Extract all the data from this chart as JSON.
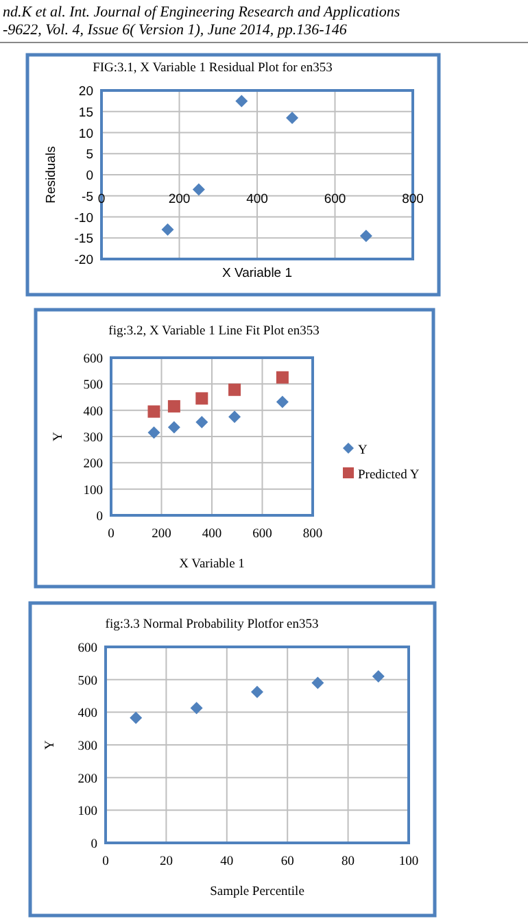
{
  "chart_data": [
    {
      "type": "scatter",
      "title": "FIG:3.1, X Variable 1  Residual Plot for en353",
      "xlabel": "X Variable 1",
      "ylabel": "Residuals",
      "annotations": [
        "nd.K  et al. Int. Journal of Engineering Research and Applications",
        "-9622, Vol. 4, Issue 6( Version 1), June 2014, pp.136-146"
      ],
      "series": [
        {
          "color": "#4f81bd",
          "x": [
            170,
            250,
            360,
            490,
            680
          ],
          "values": [
            -13,
            -3.5,
            17.5,
            13.5,
            -14.5
          ],
          "marker": "diamond"
        }
      ],
      "xlim": [
        0,
        800
      ],
      "xticks": [
        0,
        200,
        400,
        600,
        800
      ],
      "ylim": [
        -20,
        20
      ],
      "yticks": [
        -20,
        -15,
        -10,
        -5,
        0,
        5,
        10,
        15,
        20
      ],
      "grid": true,
      "legend": false
    },
    {
      "type": "scatter",
      "title": "fig:3.2, X Variable 1 Line Fit  Plot en353",
      "xlabel": "X Variable 1",
      "ylabel": "Y",
      "series": [
        {
          "name": "Y",
          "color": "#4f81bd",
          "x": [
            170,
            250,
            360,
            490,
            680
          ],
          "values": [
            315,
            335,
            355,
            375,
            432
          ],
          "marker": "diamond"
        },
        {
          "name": "Predicted Y",
          "color": "#c0504d",
          "x": [
            170,
            250,
            360,
            490,
            680
          ],
          "values": [
            395,
            415,
            445,
            478,
            525
          ],
          "marker": "square"
        }
      ],
      "xlim": [
        0,
        800
      ],
      "xticks": [
        0,
        200,
        400,
        600,
        800
      ],
      "ylim": [
        0,
        600
      ],
      "yticks": [
        0,
        100,
        200,
        300,
        400,
        500,
        600
      ],
      "grid": true,
      "legend": "right"
    },
    {
      "type": "scatter",
      "title": "fig:3.3 Normal Probability Plotfor en353",
      "xlabel": "Sample Percentile",
      "ylabel": "Y",
      "series": [
        {
          "color": "#4f81bd",
          "x": [
            10,
            30,
            50,
            70,
            90
          ],
          "values": [
            383,
            413,
            462,
            490,
            510
          ],
          "marker": "diamond"
        }
      ],
      "xlim": [
        0,
        100
      ],
      "xticks": [
        0,
        20,
        40,
        60,
        80,
        100
      ],
      "ylim": [
        0,
        600
      ],
      "yticks": [
        0,
        100,
        200,
        300,
        400,
        500,
        600
      ],
      "grid": true,
      "legend": false
    }
  ]
}
